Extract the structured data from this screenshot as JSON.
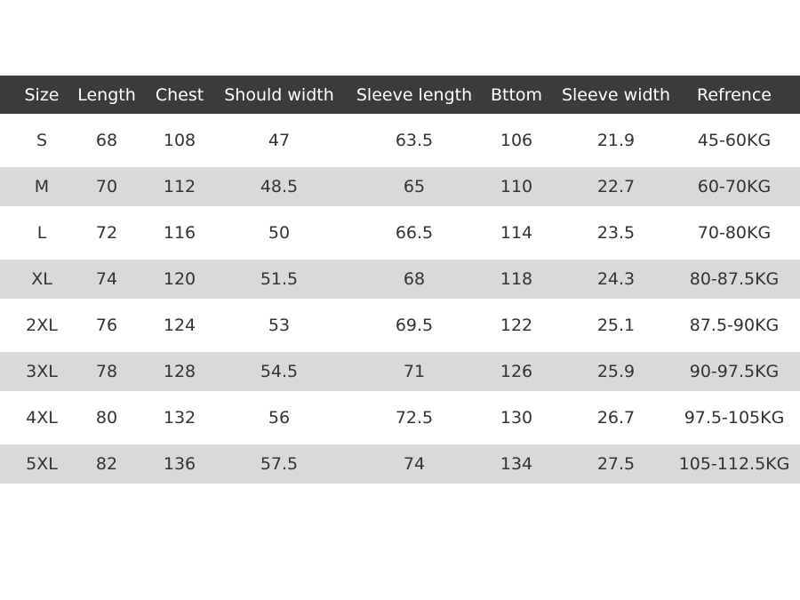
{
  "table": {
    "header": [
      "Size",
      "Length",
      "Chest",
      "Should width",
      "Sleeve length",
      "Bttom",
      "Sleeve width",
      "Refrence"
    ],
    "rows": [
      [
        "S",
        68,
        108,
        47,
        63.5,
        106,
        21.9,
        "45-60KG"
      ],
      [
        "M",
        70,
        112,
        48.5,
        65,
        110,
        22.7,
        "60-70KG"
      ],
      [
        "L",
        72,
        116,
        50,
        66.5,
        114,
        23.5,
        "70-80KG"
      ],
      [
        "XL",
        74,
        120,
        51.5,
        68,
        118,
        24.3,
        "80-87.5KG"
      ],
      [
        "2XL",
        76,
        124,
        53,
        69.5,
        122,
        25.1,
        "87.5-90KG"
      ],
      [
        "3XL",
        78,
        128,
        54.5,
        71,
        126,
        25.9,
        "90-97.5KG"
      ],
      [
        "4XL",
        80,
        132,
        56,
        72.5,
        130,
        26.7,
        "97.5-105KG"
      ],
      [
        "5XL",
        82,
        136,
        57.5,
        74,
        134,
        27.5,
        "105-112.5KG"
      ]
    ]
  }
}
